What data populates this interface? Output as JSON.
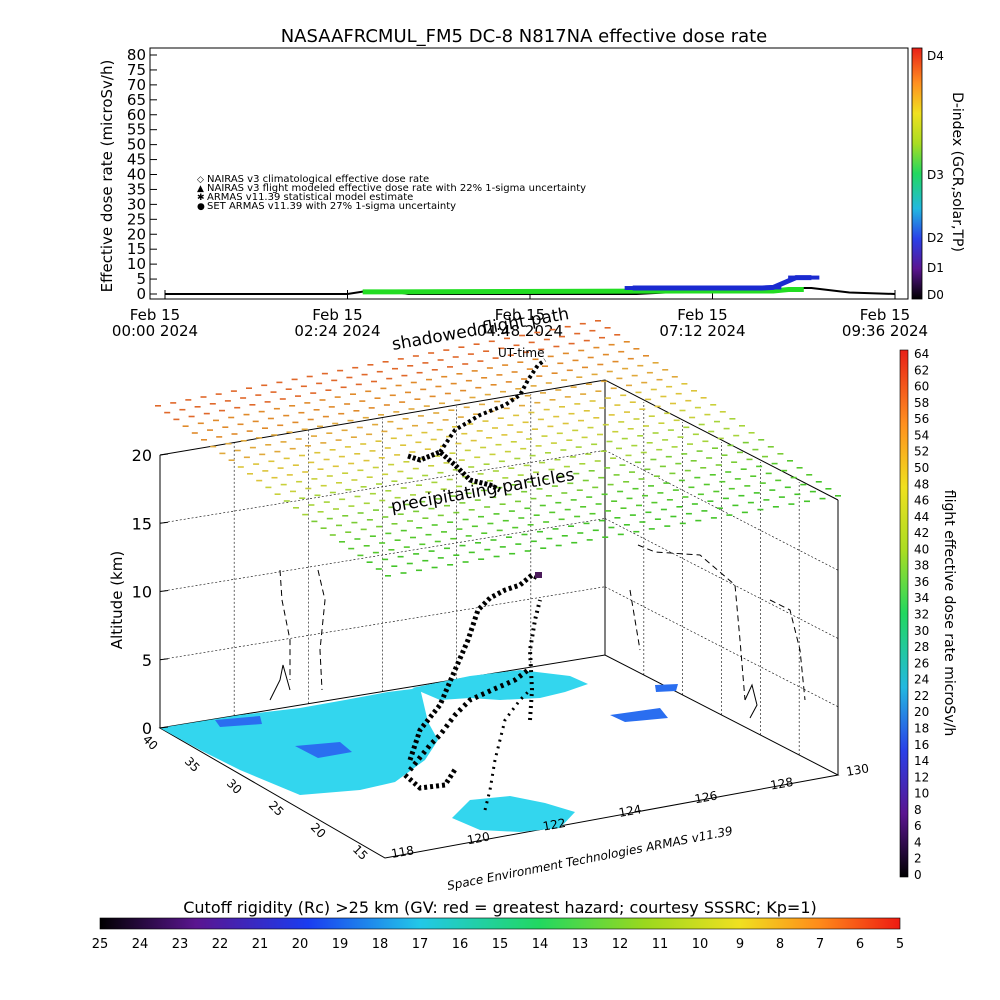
{
  "title": "NASAAFRCMUL_FM5 DC-8   N817NA effective dose rate",
  "colors": {
    "cyan_region": "#33d6ee",
    "blue_patch": "#2a6ef0",
    "series_nairas_clim": "#d02020",
    "series_nairas_flight": "#000000",
    "series_armas_model": "#22dd22",
    "series_set_armas": "#1a2ad0"
  },
  "chart_data": [
    {
      "type": "line",
      "title": "NASAAFRCMUL_FM5 DC-8   N817NA effective dose rate",
      "ylabel": "Effective dose rate (microSv/h)",
      "y_ticks": [
        "80",
        "75",
        "70",
        "65",
        "60",
        "55",
        "50",
        "45",
        "40",
        "35",
        "30",
        "25",
        "20",
        "15",
        "10",
        "5",
        "0"
      ],
      "ylim": [
        0,
        80
      ],
      "x_ticks": [
        {
          "date": "Feb 15",
          "time": "00:00 2024"
        },
        {
          "date": "Feb 15",
          "time": "02:24 2024"
        },
        {
          "date": "Feb 15",
          "time": "04:48 2024"
        },
        {
          "date": "Feb 15",
          "time": "07:12 2024"
        },
        {
          "date": "Feb 15",
          "time": "09:36 2024"
        }
      ],
      "xlim_hours": [
        0,
        9.6
      ],
      "legend": [
        {
          "symbol": "◇",
          "text": "NAIRAS v3 climatological effective dose rate",
          "color": "#d02020"
        },
        {
          "symbol": "▲",
          "text": "NAIRAS v3 flight modeled effective dose rate with 22% 1-sigma uncertainty",
          "color": "#000000"
        },
        {
          "symbol": "✱",
          "text": "ARMAS v11.39 statistical model estimate",
          "color": "#22dd22"
        },
        {
          "symbol": "●",
          "text": "SET ARMAS v11.39 with 27% 1-sigma uncertainty",
          "color": "#1a2ad0"
        }
      ],
      "legend_position": "upper-left",
      "series": [
        {
          "name": "NAIRAS v3 flight modeled effective dose rate with 22% 1-sigma uncertainty",
          "x_hours": [
            0.0,
            2.4,
            2.6,
            3.0,
            3.2,
            6.2,
            6.8,
            7.2,
            8.0,
            8.3,
            8.5,
            9.0,
            9.6
          ],
          "y": [
            0.0,
            0.0,
            0.8,
            0.8,
            0.0,
            0.0,
            0.8,
            1.2,
            1.2,
            2.0,
            2.0,
            0.5,
            0.0
          ]
        },
        {
          "name": "ARMAS v11.39 statistical model estimate",
          "x_hours": [
            2.6,
            3.0,
            6.9,
            7.1,
            8.0,
            8.2,
            8.4
          ],
          "y": [
            0.7,
            0.7,
            1.0,
            1.0,
            1.0,
            1.5,
            1.5
          ]
        },
        {
          "name": "SET ARMAS v11.39 with 27% 1-sigma uncertainty",
          "x_hours": [
            6.15,
            7.85,
            8.0,
            8.3,
            8.5
          ],
          "y": [
            2.0,
            2.0,
            2.2,
            5.5,
            5.5
          ]
        }
      ],
      "right_colorbar": {
        "label": "D-index (GCR,solar,TP)",
        "ticks": [
          "D4",
          "D3",
          "D2",
          "D1",
          "D0"
        ]
      }
    },
    {
      "type": "scatter",
      "annotations": [
        "shadowed flight path",
        "UT-time",
        "precipitating particles"
      ],
      "ylabel": "Altitude (km)",
      "z_ticks": [
        "20",
        "15",
        "10",
        "5",
        "0"
      ],
      "zlim": [
        0,
        20
      ],
      "lat_ticks": [
        "40",
        "35",
        "30",
        "25",
        "20",
        "15"
      ],
      "lon_ticks": [
        "118",
        "120",
        "122",
        "124",
        "126",
        "128",
        "130"
      ],
      "credit": "Space Environment Technologies ARMAS v11.39",
      "grid": true,
      "right_colorbar": {
        "label": "flight effective dose rate microSv/h",
        "ticks": [
          "64",
          "62",
          "60",
          "58",
          "56",
          "54",
          "52",
          "50",
          "48",
          "46",
          "44",
          "42",
          "40",
          "38",
          "36",
          "34",
          "32",
          "30",
          "28",
          "26",
          "24",
          "22",
          "20",
          "18",
          "16",
          "14",
          "12",
          "10",
          "8",
          "6",
          "4",
          "2",
          "0"
        ]
      }
    },
    {
      "type": "heatmap",
      "title": "Cutoff rigidity (Rc) >25 km (GV: red = greatest hazard; courtesy SSSRC; Kp=1)",
      "ticks": [
        "25",
        "24",
        "23",
        "22",
        "21",
        "20",
        "19",
        "18",
        "17",
        "16",
        "15",
        "14",
        "13",
        "12",
        "11",
        "10",
        "9",
        "8",
        "7",
        "6",
        "5"
      ]
    }
  ]
}
